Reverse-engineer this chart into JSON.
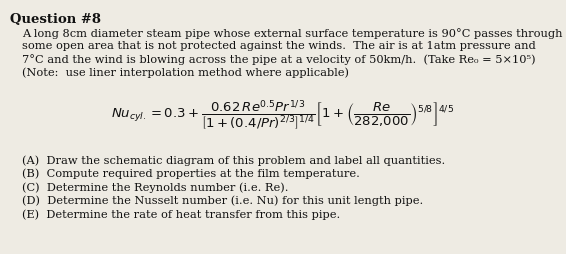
{
  "title": "Question #8",
  "line1": "A long 8cm diameter steam pipe whose external surface temperature is 90°C passes through",
  "line2": "some open area that is not protected against the winds.  The air is at 1atm pressure and",
  "line3": "7°C and the wind is blowing across the pipe at a velocity of 50km/h.  (Take Re₀ = 5×10⁵)",
  "line4": "(Note:  use liner interpolation method where applicable)",
  "equation": "$Nu_{cyl.} = 0.3 + \\dfrac{0.62\\,Re^{0.5}Pr^{1/3}}{\\left[1+(0.4/Pr)^{2/3}\\right]^{1/4}}\\left[1+\\left(\\dfrac{Re}{282{,}000}\\right)^{5/8}\\right]^{4/5}$",
  "items": [
    "(A)  Draw the schematic diagram of this problem and label all quantities.",
    "(B)  Compute required properties at the film temperature.",
    "(C)  Determine the Reynolds number (i.e. Re).",
    "(D)  Determine the Nusselt number (i.e. Nu) for this unit length pipe.",
    "(E)  Determine the rate of heat transfer from this pipe."
  ],
  "bg_color": "#eeebe3",
  "text_color": "#111111",
  "title_fontsize": 9.5,
  "body_fontsize": 8.2,
  "eq_fontsize": 9.5,
  "item_fontsize": 8.2
}
